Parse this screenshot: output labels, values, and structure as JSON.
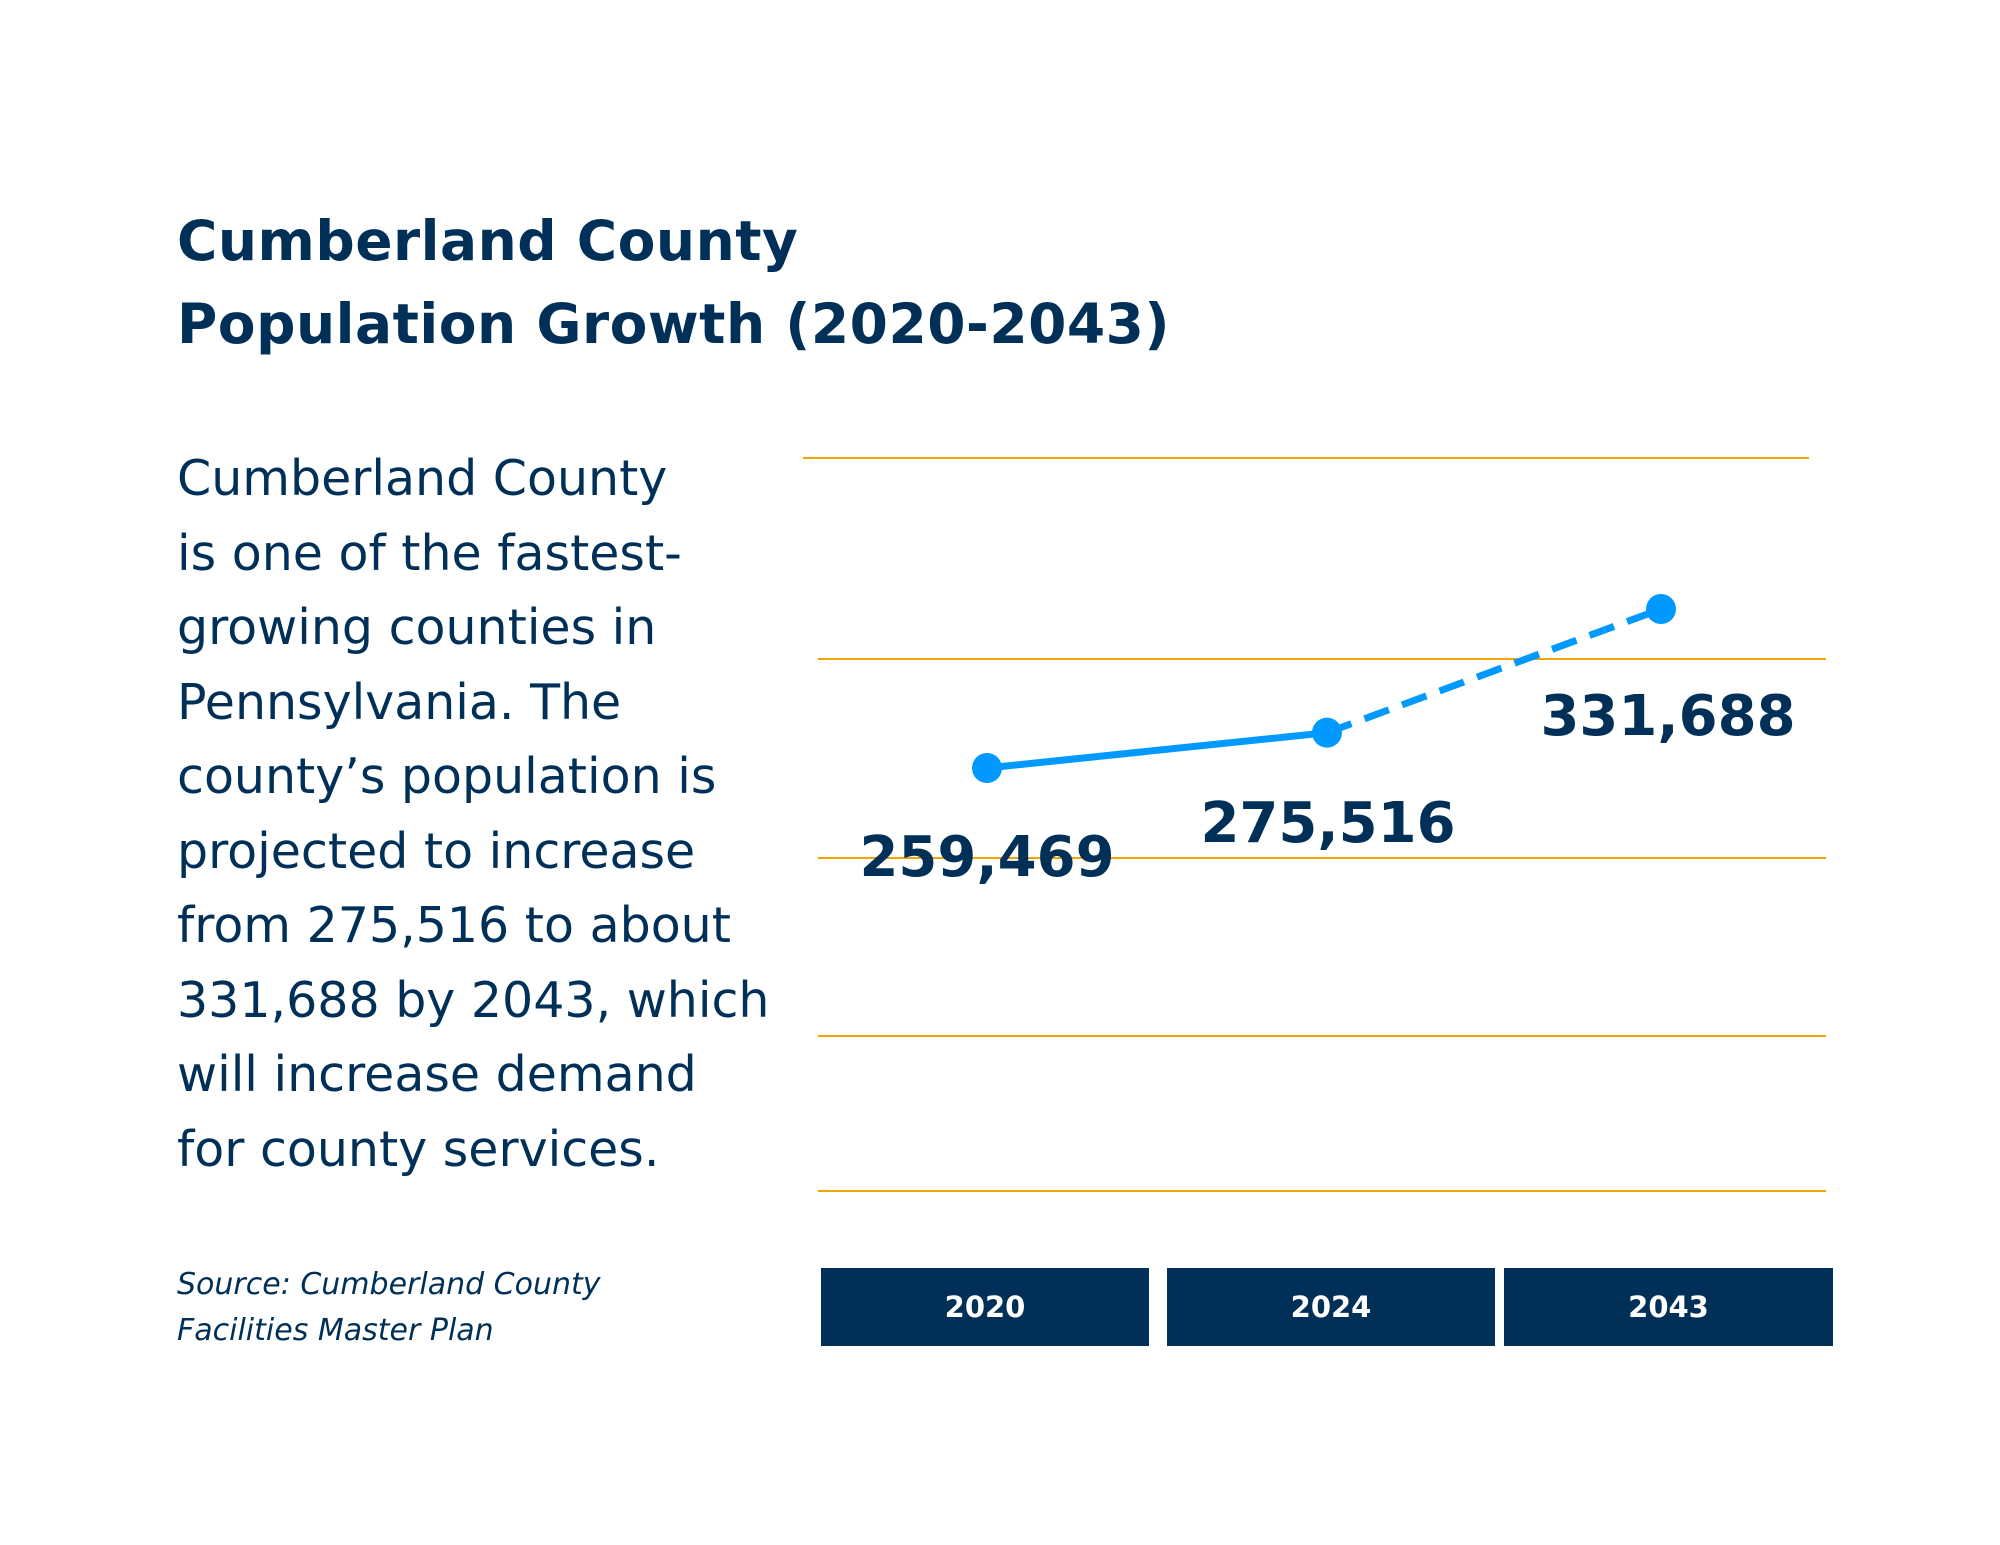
{
  "chart_data": {
    "type": "line",
    "title": [
      "Cumberland County",
      "Population Growth (2020-2043)"
    ],
    "categories": [
      "2020",
      "2024",
      "2043"
    ],
    "series": [
      {
        "values": [
          259469,
          275516,
          331688
        ],
        "line_styles": [
          "solid",
          "dashed"
        ]
      }
    ],
    "data_labels": [
      "259,469",
      "275,516",
      "331,688"
    ],
    "grid": true,
    "colors": {
      "line": "#0099ff",
      "grid": "#f0a500",
      "text": "#003057",
      "category_box": "#003057"
    }
  },
  "description": "Cumberland County is one of the fastest-growing counties in Pennsylvania. The county’s population is projected to increase from 275,516 to about 331,688 by 2043, which will increase demand for county services.",
  "description_lines": [
    "Cumberland County",
    "is one of the fastest-",
    "growing counties in",
    "Pennsylvania. The",
    "county’s population is",
    "projected to increase",
    "from 275,516 to about",
    "331,688 by 2043, which",
    "will increase demand",
    "for county services."
  ],
  "source": [
    "Source: Cumberland County",
    "Facilities Master Plan"
  ]
}
